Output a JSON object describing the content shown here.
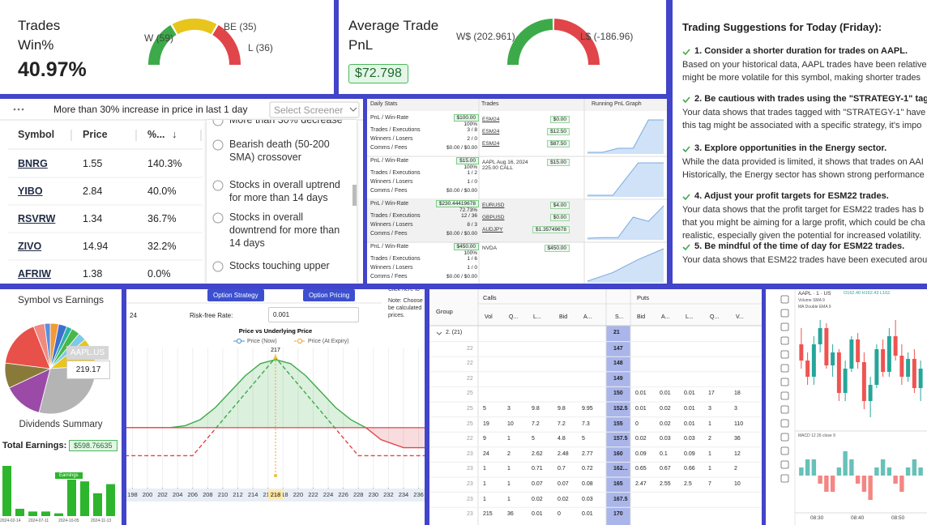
{
  "win_card": {
    "title": "Trades Win%",
    "value": "40.97%",
    "gauge_labels": [
      "W (59)",
      "BE (35)",
      "L (36)"
    ]
  },
  "pnl_card": {
    "title": "Average Trade PnL",
    "value": "$72.798",
    "gauge_labels": [
      "W$ (202.961)",
      "L$ (-186.96)"
    ]
  },
  "suggestions": {
    "title": "Trading Suggestions for Today (Friday):",
    "items": [
      {
        "heading": "1. Consider a shorter duration for trades on AAPL.",
        "body": [
          "Based on your historical data, AAPL trades have been relative",
          "might be more volatile for this symbol, making shorter trades"
        ]
      },
      {
        "heading": "2. Be cautious with trades using the \"STRATEGY-1\" tag.",
        "body": [
          "Your data shows that trades tagged with \"STRATEGY-1\" have le",
          "this tag might be associated with a specific strategy, it's impo"
        ]
      },
      {
        "heading": "3. Explore opportunities in the Energy sector.",
        "body": [
          "While the data provided is limited, it shows that trades on AAI",
          "Historically, the Energy sector has shown strong performance"
        ]
      },
      {
        "heading": "4. Adjust your profit targets for ESM22 trades.",
        "body": [
          "Your data shows that the profit target for ESM22 trades has b",
          "that you might be aiming for a large profit, which could be cha",
          "realistic, especially given the potential for increased volatility."
        ]
      },
      {
        "heading": "5. Be mindful of the time of day for ESM22 trades.",
        "body": [
          "Your data shows that ESM22 trades have been executed arou"
        ]
      }
    ]
  },
  "screener": {
    "banner": "More than 30% increase in price in last 1 day",
    "select": "Select Screener",
    "columns": [
      "Symbol",
      "Price",
      "%..."
    ],
    "sort_icon": "↓",
    "rows": [
      [
        "BNRG",
        "1.55",
        "140.3%"
      ],
      [
        "YIBO",
        "2.84",
        "40.0%"
      ],
      [
        "RSVRW",
        "1.34",
        "36.7%"
      ],
      [
        "ZIVO",
        "14.94",
        "32.2%"
      ],
      [
        "AFRIW",
        "1.38",
        "0.0%"
      ]
    ],
    "options": [
      "More than 30% decrease",
      "Bearish death (50-200 SMA) crossover",
      "Stocks in overall uptrend for more than 14 days",
      "Stocks in overall downtrend for more than 14 days",
      "Stocks touching upper"
    ]
  },
  "daily_stats": {
    "headers": [
      "Daily Stats",
      "Trades",
      "Running PnL Graph"
    ],
    "labels": [
      "PnL / Win-Rate",
      "Trades / Executions",
      "Winners / Losers",
      "Comms / Fees"
    ],
    "groups": [
      {
        "pnl": "$100.00",
        "win_rate": "100%",
        "trades_executions": "3 / 8",
        "winners_losers": "2 / 0",
        "comms_fees": "$0.00 / $0.00",
        "trades": [
          {
            "symbol": "ESM24",
            "pnl": "$0.00"
          },
          {
            "symbol": "ESM24",
            "pnl": "$12.50"
          },
          {
            "symbol": "ESM24",
            "pnl": "$87.50"
          }
        ],
        "running_pnl": [
          0,
          0,
          12.5,
          12.5,
          100,
          100
        ]
      },
      {
        "pnl": "$15.00",
        "win_rate": "100%",
        "trades_executions": "1 / 2",
        "winners_losers": "1 / 0",
        "comms_fees": "$0.00 / $0.00",
        "trades": [
          {
            "symbol": "AAPL Aug 16, 2024 225.00 CALL",
            "pnl": "$15.00"
          }
        ],
        "running_pnl": [
          0,
          0,
          15,
          15
        ]
      },
      {
        "pnl": "$230.44419678",
        "win_rate": "72.73%",
        "trades_executions": "12 / 36",
        "winners_losers": "8 / 3",
        "comms_fees": "$0.00 / $0.00",
        "trades": [
          {
            "symbol": "EURUSD",
            "pnl": "$4.00"
          },
          {
            "symbol": "GBPUSD",
            "pnl": "$0.00"
          },
          {
            "symbol": "AUDJPY",
            "pnl": "$1.35749678"
          }
        ],
        "running_pnl": [
          0,
          4,
          4,
          150,
          120,
          230.44
        ]
      },
      {
        "pnl": "$450.00",
        "win_rate": "100%",
        "trades_executions": "1 / 6",
        "winners_losers": "1 / 0",
        "comms_fees": "$0.00 / $0.00",
        "trades": [
          {
            "symbol": "NVDA",
            "pnl": "$450.00"
          }
        ],
        "running_pnl": [
          0,
          120,
          300,
          450
        ]
      }
    ]
  },
  "symbol_earnings": {
    "title": "Symbol vs Earnings",
    "slices": [
      {
        "color": "#f29a38",
        "value": 3
      },
      {
        "color": "#3d6fd1",
        "value": 3
      },
      {
        "color": "#2bb3a6",
        "value": 2
      },
      {
        "color": "#49b84a",
        "value": 3
      },
      {
        "color": "#7ec8ea",
        "value": 3
      },
      {
        "color": "#e8c51c",
        "value": 10
      },
      {
        "color": "#b4b4b4",
        "value": 30
      },
      {
        "color": "#9b4aa8",
        "value": 14
      },
      {
        "color": "#8a7a3a",
        "value": 9
      },
      {
        "color": "#e8504a",
        "value": 17
      },
      {
        "color": "#f08a80",
        "value": 4
      },
      {
        "color": "#5a8ee0",
        "value": 2
      }
    ],
    "tooltip": {
      "symbol": "AAPL.US",
      "value": "219.17"
    }
  },
  "dividends": {
    "title": "Dividends Summary",
    "total_label": "Total Earnings:",
    "total": "$598.76635",
    "tooltip_title": "Earnings",
    "color": "#2db52d",
    "values": [
      55,
      8,
      5,
      5,
      3,
      40,
      38,
      25,
      35
    ],
    "dates": [
      "2024-02-14",
      "2024-07-11",
      "2024-10-05",
      "2024-11-13"
    ]
  },
  "option_controls": {
    "strategy": "Option Strategy",
    "pricing": "Option Pricing",
    "rate_label": "Risk-free Rate:",
    "rate": "0.001",
    "left_value": "24",
    "notes": [
      "Click here to",
      "Note: Choose",
      "be calculated",
      "prices."
    ]
  },
  "option_chart": {
    "type": "line",
    "title": "Price vs Underlying Price",
    "profit_color": "#3daa4a",
    "loss_color": "#e0454a",
    "series": [
      {
        "name": "Price (Now)",
        "color": "#4a8fd8",
        "dashed": false,
        "x": [
          197,
          200,
          203,
          205,
          207,
          209,
          211,
          213,
          215,
          217,
          219,
          221,
          223,
          225,
          227,
          229,
          231,
          234,
          237
        ],
        "values": [
          0,
          0,
          0,
          0.5,
          2,
          5,
          9,
          13,
          16,
          17,
          16,
          13,
          9,
          5,
          2,
          0,
          -3,
          -5,
          -5
        ]
      },
      {
        "name": "Price (At Expiry)",
        "color": "#f0a030",
        "dashed": true,
        "x": [
          197,
          206,
          217,
          228,
          237
        ],
        "values": [
          -7,
          -7,
          17.5,
          -7,
          -7
        ]
      }
    ],
    "marker_x": 217,
    "cursor_label": 218,
    "xlim": [
      197.2,
      236.8
    ],
    "ylim": [
      -15,
      20
    ],
    "xticks": [
      198,
      200,
      202,
      204,
      206,
      208,
      210,
      212,
      214,
      216,
      218,
      220,
      222,
      224,
      226,
      228,
      230,
      232,
      234,
      236
    ]
  },
  "option_chain": {
    "group_header": "Group",
    "calls_header": "Calls",
    "puts_header": "Puts",
    "columns": [
      "Vol",
      "Q...",
      "L...",
      "Bid",
      "A...",
      "S...",
      "Bid",
      "A...",
      "L...",
      "Q...",
      "V..."
    ],
    "group_row": {
      "label": "2. (21)",
      "strike": "21"
    },
    "rows": [
      [
        "22",
        null,
        null,
        null,
        null,
        null,
        "147",
        null,
        null,
        null,
        null,
        null
      ],
      [
        "22",
        null,
        null,
        null,
        null,
        null,
        "148",
        null,
        null,
        null,
        null,
        null
      ],
      [
        "22",
        null,
        null,
        null,
        null,
        null,
        "149",
        null,
        null,
        null,
        null,
        null
      ],
      [
        "25",
        null,
        null,
        null,
        null,
        null,
        "150",
        "0.01",
        "0.01",
        "0.01",
        "17",
        "18"
      ],
      [
        "25",
        "5",
        "3",
        "9.8",
        "9.8",
        "9.95",
        "152.5",
        "0.01",
        "0.02",
        "0.01",
        "3",
        "3"
      ],
      [
        "25",
        "19",
        "10",
        "7.2",
        "7.2",
        "7.3",
        "155",
        "0",
        "0.02",
        "0.01",
        "1",
        "110"
      ],
      [
        "22",
        "9",
        "1",
        "5",
        "4.8",
        "5",
        "157.5",
        "0.02",
        "0.03",
        "0.03",
        "2",
        "36"
      ],
      [
        "23",
        "24",
        "2",
        "2.62",
        "2.48",
        "2.77",
        "160",
        "0.09",
        "0.1",
        "0.09",
        "1",
        "12"
      ],
      [
        "23",
        "1",
        "1",
        "0.71",
        "0.7",
        "0.72",
        "162...",
        "0.65",
        "0.67",
        "0.66",
        "1",
        "2"
      ],
      [
        "23",
        "1",
        "1",
        "0.07",
        "0.07",
        "0.08",
        "165",
        "2.47",
        "2.55",
        "2.5",
        "7",
        "10"
      ],
      [
        "23",
        "1",
        "1",
        "0.02",
        "0.02",
        "0.03",
        "167.5",
        null,
        null,
        null,
        null,
        null
      ],
      [
        "23",
        "215",
        "36",
        "0.01",
        "0",
        "0.01",
        "170",
        null,
        null,
        null,
        null,
        null
      ]
    ]
  },
  "price_chart": {
    "title": "AAPL · 1 · US",
    "quote": "O162.40 H162.43 L162.",
    "indicators": [
      "Volume SMA 9",
      "MA Double EMA 9"
    ],
    "macd_label": "MACD 12 26 close 9",
    "times": [
      "08:30",
      "08:40",
      "08:50"
    ],
    "up_color": "#26a69a",
    "down_color": "#ef5350",
    "ylim": [
      161.95,
      162.65
    ],
    "candles": [
      [
        162.45,
        162.55,
        162.3,
        162.35
      ],
      [
        162.35,
        162.4,
        162.2,
        162.25
      ],
      [
        162.25,
        162.5,
        162.2,
        162.45
      ],
      [
        162.45,
        162.6,
        162.4,
        162.55
      ],
      [
        162.55,
        162.58,
        162.3,
        162.32
      ],
      [
        162.32,
        162.45,
        162.25,
        162.4
      ],
      [
        162.4,
        162.42,
        162.1,
        162.15
      ],
      [
        162.15,
        162.35,
        162.1,
        162.3
      ],
      [
        162.3,
        162.5,
        162.28,
        162.48
      ],
      [
        162.48,
        162.52,
        162.3,
        162.34
      ],
      [
        162.34,
        162.4,
        162.05,
        162.1
      ],
      [
        162.1,
        162.25,
        162.0,
        162.2
      ],
      [
        162.2,
        162.45,
        162.18,
        162.42
      ],
      [
        162.42,
        162.48,
        162.25,
        162.28
      ],
      [
        162.28,
        162.55,
        162.25,
        162.5
      ],
      [
        162.5,
        162.6,
        162.35,
        162.38
      ],
      [
        162.38,
        162.45,
        162.2,
        162.25
      ],
      [
        162.25,
        162.4,
        162.22,
        162.36
      ],
      [
        162.36,
        162.42,
        162.15,
        162.18
      ],
      [
        162.18,
        162.35,
        162.1,
        162.3
      ]
    ],
    "macd_hist": [
      0.01,
      0.02,
      0.02,
      -0.01,
      -0.02,
      -0.02,
      0.01,
      0.03,
      0.02,
      -0.01,
      -0.02,
      -0.03,
      0.01,
      0.02,
      0.01,
      -0.01,
      -0.02,
      0.01,
      0.02,
      0.01
    ],
    "macd_lim": [
      -0.04,
      0.04
    ]
  }
}
